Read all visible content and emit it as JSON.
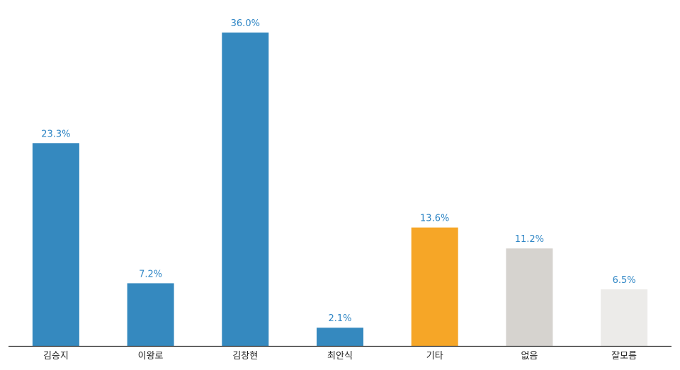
{
  "chart_data": {
    "type": "bar",
    "title": "",
    "xlabel": "",
    "ylabel": "",
    "ylim": [
      0,
      36.0
    ],
    "grid": false,
    "value_suffix": "%",
    "categories": [
      "김승지",
      "이왕로",
      "김창현",
      "최안식",
      "기타",
      "없음",
      "잘모름"
    ],
    "values": [
      23.3,
      7.2,
      36.0,
      2.1,
      13.6,
      11.2,
      6.5
    ],
    "value_labels": [
      "23.3%",
      "7.2%",
      "36.0%",
      "2.1%",
      "13.6%",
      "11.2%",
      "6.5%"
    ],
    "colors": [
      "#3589bf",
      "#3589bf",
      "#3589bf",
      "#3589bf",
      "#f6a627",
      "#d6d3cf",
      "#ecebe9"
    ],
    "label_color": "#2f86c5",
    "axis_color": "#333333"
  }
}
